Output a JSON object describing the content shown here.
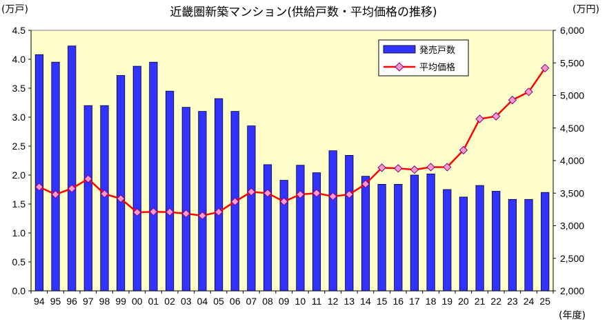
{
  "chart_data": {
    "type": "bar+line",
    "title": "近畿圏新築マンション(供給戸数・平均価格の推移)",
    "left_unit": "(万戸)",
    "right_unit": "(万円)",
    "x_unit": "(年度)",
    "categories": [
      "94",
      "95",
      "96",
      "97",
      "98",
      "99",
      "00",
      "01",
      "02",
      "03",
      "04",
      "05",
      "06",
      "07",
      "08",
      "09",
      "10",
      "11",
      "12",
      "13",
      "14",
      "15",
      "16",
      "17",
      "18",
      "19",
      "20",
      "21",
      "22",
      "23",
      "24",
      "25"
    ],
    "series": [
      {
        "name": "発売戸数",
        "type": "bar",
        "axis": "left",
        "color": "#3333ff",
        "values": [
          4.08,
          3.95,
          4.23,
          3.2,
          3.2,
          3.72,
          3.88,
          3.95,
          3.45,
          3.17,
          3.1,
          3.32,
          3.1,
          2.85,
          2.18,
          1.91,
          2.17,
          2.04,
          2.42,
          2.34,
          1.98,
          1.84,
          1.84,
          2.0,
          2.02,
          1.75,
          1.62,
          1.82,
          1.72,
          1.58,
          1.58,
          1.7
        ]
      },
      {
        "name": "平均価格",
        "type": "line",
        "axis": "right",
        "color": "#ff0000",
        "marker_color": "#ff99cc",
        "values": [
          3595,
          3480,
          3570,
          3720,
          3490,
          3415,
          3205,
          3215,
          3210,
          3185,
          3155,
          3210,
          3370,
          3520,
          3500,
          3370,
          3480,
          3500,
          3450,
          3480,
          3640,
          3890,
          3880,
          3860,
          3900,
          3900,
          4160,
          4640,
          4680,
          4930,
          5055,
          5420
        ]
      }
    ],
    "y_left": {
      "min": 0,
      "max": 4.5,
      "ticks": [
        "0.0",
        "0.5",
        "1.0",
        "1.5",
        "2.0",
        "2.5",
        "3.0",
        "3.5",
        "4.0",
        "4.5"
      ]
    },
    "y_right": {
      "min": 2000,
      "max": 6000,
      "ticks": [
        "2,000",
        "2,500",
        "3,000",
        "3,500",
        "4,000",
        "4,500",
        "5,000",
        "5,500",
        "6,000"
      ]
    },
    "plot_background": "#ffffcc",
    "grid": false,
    "legend_position": "top-right"
  }
}
